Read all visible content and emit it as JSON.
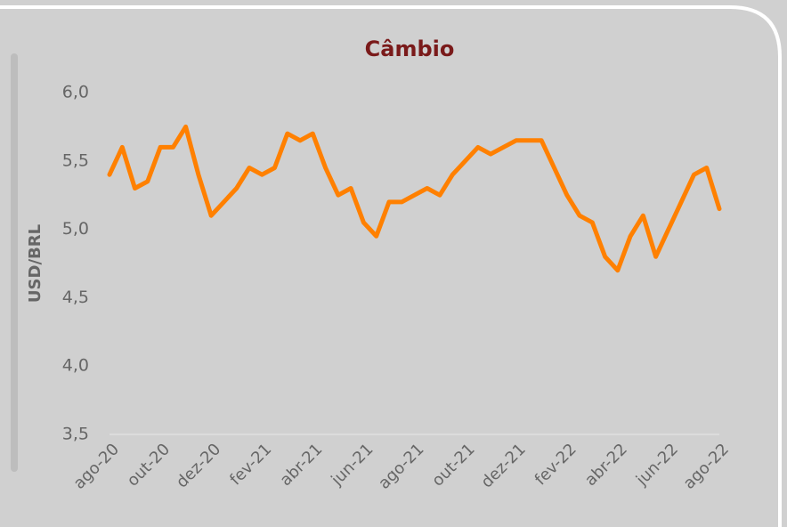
{
  "chart_data": {
    "type": "line",
    "title": "Câmbio",
    "ylabel": "USD/BRL",
    "categories": [
      "ago-20",
      null,
      null,
      null,
      "out-20",
      null,
      null,
      null,
      "dez-20",
      null,
      null,
      null,
      "fev-21",
      null,
      null,
      null,
      "abr-21",
      null,
      null,
      null,
      "jun-21",
      null,
      null,
      null,
      "ago-21",
      null,
      null,
      null,
      "out-21",
      null,
      null,
      null,
      "dez-21",
      null,
      null,
      null,
      "fev-22",
      null,
      null,
      null,
      "abr-22",
      null,
      null,
      null,
      "jun-22",
      null,
      null,
      null,
      "ago-22"
    ],
    "series": [
      {
        "name": "USD/BRL",
        "color": "#ff8000",
        "values": [
          5.4,
          5.6,
          5.3,
          5.35,
          5.6,
          5.6,
          5.75,
          5.4,
          5.1,
          5.2,
          5.3,
          5.45,
          5.4,
          5.45,
          5.7,
          5.65,
          5.7,
          5.45,
          5.25,
          5.3,
          5.05,
          4.95,
          5.2,
          5.2,
          5.25,
          5.3,
          5.25,
          5.4,
          5.5,
          5.6,
          5.55,
          5.6,
          5.65,
          5.65,
          5.65,
          5.45,
          5.25,
          5.1,
          5.05,
          4.8,
          4.7,
          4.95,
          5.1,
          4.8,
          5.0,
          5.2,
          5.4,
          5.45,
          5.15
        ]
      }
    ],
    "ylim": [
      3.5,
      6.0
    ],
    "yticks": [
      {
        "value": 3.5,
        "label": "3,5"
      },
      {
        "value": 4.0,
        "label": "4,0"
      },
      {
        "value": 4.5,
        "label": "4,5"
      },
      {
        "value": 5.0,
        "label": "5,0"
      },
      {
        "value": 5.5,
        "label": "5,5"
      },
      {
        "value": 6.0,
        "label": "6,0"
      }
    ]
  }
}
